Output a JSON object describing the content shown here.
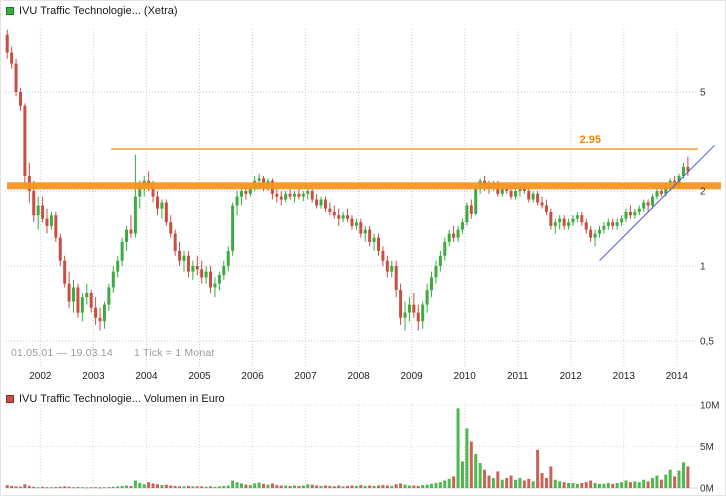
{
  "legend": {
    "price_label": "IVU Traffic Technologie... (Xetra)",
    "volume_label": "IVU Traffic Technologie... Volumen in Euro"
  },
  "info": {
    "date_range": "01.05.01 — 19.03.14",
    "tick_info": "1 Tick = 1 Monat"
  },
  "colors": {
    "up": "#3cab40",
    "down": "#c74e42",
    "up_vol": "#4db84d",
    "down_vol": "#cc6157",
    "grid": "#c9c9c9",
    "grid_light": "#d9d9d9",
    "orange": "#f79420",
    "orange_text": "#ef8200",
    "trend": "#4d61c4",
    "axis_text": "#333333"
  },
  "axes": {
    "price_ticks": [
      {
        "label": "5",
        "value": 5
      },
      {
        "label": "2",
        "value": 2
      },
      {
        "label": "1",
        "value": 1
      },
      {
        "label": "0,5",
        "value": 0.5
      }
    ],
    "volume_ticks": [
      {
        "label": "10M",
        "value": 10
      },
      {
        "label": "5M",
        "value": 5
      },
      {
        "label": "0M",
        "value": 0
      }
    ],
    "years": [
      {
        "label": "2002",
        "month_index": 8
      },
      {
        "label": "2003",
        "month_index": 20
      },
      {
        "label": "2004",
        "month_index": 32
      },
      {
        "label": "2005",
        "month_index": 44
      },
      {
        "label": "2006",
        "month_index": 56
      },
      {
        "label": "2007",
        "month_index": 68
      },
      {
        "label": "2008",
        "month_index": 80
      },
      {
        "label": "2009",
        "month_index": 92
      },
      {
        "label": "2010",
        "month_index": 104
      },
      {
        "label": "2011",
        "month_index": 116
      },
      {
        "label": "2012",
        "month_index": 128
      },
      {
        "label": "2013",
        "month_index": 140
      },
      {
        "label": "2014",
        "month_index": 152
      }
    ]
  },
  "annotations": {
    "resistance": {
      "price": 2.95,
      "label": "2.95",
      "start_month": 24
    },
    "support_band": {
      "price": 2.1,
      "thickness": 7
    },
    "trendline": {
      "from_month": 134,
      "from_price": 1.05,
      "to_month": 160,
      "to_price": 3.05
    }
  },
  "chart_data": [
    {
      "type": "candlestick",
      "title": "IVU Traffic Technologie... (Xetra)",
      "timeframe": "1 month per tick",
      "start": "2001-05",
      "end": "2014-03",
      "y_scale": "log",
      "ylim": [
        0.4,
        9
      ],
      "ohlc": [
        [
          8.5,
          8.9,
          6.8,
          7.2
        ],
        [
          7.2,
          7.6,
          6.2,
          6.5
        ],
        [
          6.5,
          6.8,
          4.8,
          5.0
        ],
        [
          5.0,
          5.2,
          4.2,
          4.4
        ],
        [
          4.4,
          4.5,
          2.1,
          2.3
        ],
        [
          2.3,
          2.6,
          1.8,
          2.0
        ],
        [
          2.0,
          2.2,
          1.5,
          1.6
        ],
        [
          1.6,
          1.9,
          1.4,
          1.75
        ],
        [
          1.75,
          1.9,
          1.5,
          1.55
        ],
        [
          1.55,
          1.7,
          1.35,
          1.45
        ],
        [
          1.45,
          1.65,
          1.4,
          1.6
        ],
        [
          1.6,
          1.65,
          1.25,
          1.3
        ],
        [
          1.3,
          1.35,
          1.0,
          1.05
        ],
        [
          1.05,
          1.1,
          0.82,
          0.85
        ],
        [
          0.85,
          0.95,
          0.68,
          0.72
        ],
        [
          0.72,
          0.88,
          0.65,
          0.82
        ],
        [
          0.82,
          0.85,
          0.62,
          0.65
        ],
        [
          0.65,
          0.78,
          0.6,
          0.75
        ],
        [
          0.75,
          0.85,
          0.7,
          0.78
        ],
        [
          0.78,
          0.8,
          0.65,
          0.68
        ],
        [
          0.68,
          0.75,
          0.58,
          0.62
        ],
        [
          0.62,
          0.68,
          0.55,
          0.6
        ],
        [
          0.6,
          0.72,
          0.56,
          0.7
        ],
        [
          0.7,
          0.85,
          0.66,
          0.82
        ],
        [
          0.82,
          1.0,
          0.78,
          0.95
        ],
        [
          0.95,
          1.1,
          0.9,
          1.05
        ],
        [
          1.05,
          1.3,
          1.0,
          1.25
        ],
        [
          1.25,
          1.45,
          1.15,
          1.4
        ],
        [
          1.4,
          1.6,
          1.3,
          1.35
        ],
        [
          1.35,
          2.8,
          1.3,
          1.9
        ],
        [
          1.9,
          2.2,
          1.7,
          2.1
        ],
        [
          2.1,
          2.3,
          1.9,
          2.2
        ],
        [
          2.2,
          2.4,
          2.0,
          2.1
        ],
        [
          2.1,
          2.2,
          1.8,
          1.9
        ],
        [
          1.9,
          2.0,
          1.6,
          1.7
        ],
        [
          1.7,
          1.85,
          1.55,
          1.8
        ],
        [
          1.8,
          1.85,
          1.45,
          1.5
        ],
        [
          1.5,
          1.6,
          1.3,
          1.35
        ],
        [
          1.35,
          1.4,
          1.1,
          1.15
        ],
        [
          1.15,
          1.25,
          1.0,
          1.05
        ],
        [
          1.05,
          1.15,
          0.95,
          1.1
        ],
        [
          1.1,
          1.15,
          0.9,
          0.95
        ],
        [
          0.95,
          1.05,
          0.88,
          1.0
        ],
        [
          1.0,
          1.1,
          0.92,
          0.97
        ],
        [
          0.97,
          1.05,
          0.85,
          0.9
        ],
        [
          0.9,
          1.0,
          0.85,
          0.95
        ],
        [
          0.95,
          1.0,
          0.78,
          0.82
        ],
        [
          0.82,
          0.9,
          0.75,
          0.85
        ],
        [
          0.85,
          0.95,
          0.8,
          0.92
        ],
        [
          0.92,
          1.05,
          0.88,
          1.0
        ],
        [
          1.0,
          1.2,
          0.95,
          1.15
        ],
        [
          1.15,
          1.8,
          1.1,
          1.75
        ],
        [
          1.75,
          2.0,
          1.6,
          1.9
        ],
        [
          1.9,
          2.1,
          1.75,
          2.0
        ],
        [
          2.0,
          2.15,
          1.85,
          1.95
        ],
        [
          1.95,
          2.1,
          1.9,
          2.05
        ],
        [
          2.05,
          2.3,
          2.0,
          2.2
        ],
        [
          2.2,
          2.35,
          2.1,
          2.25
        ],
        [
          2.25,
          2.3,
          2.0,
          2.1
        ],
        [
          2.1,
          2.25,
          2.0,
          2.2
        ],
        [
          2.2,
          2.25,
          1.85,
          1.95
        ],
        [
          1.95,
          2.05,
          1.8,
          1.9
        ],
        [
          1.9,
          2.0,
          1.75,
          1.85
        ],
        [
          1.85,
          2.0,
          1.8,
          1.95
        ],
        [
          1.95,
          2.05,
          1.85,
          1.9
        ],
        [
          1.9,
          2.0,
          1.8,
          1.95
        ],
        [
          1.95,
          2.05,
          1.85,
          1.9
        ],
        [
          1.9,
          2.0,
          1.82,
          1.95
        ],
        [
          1.95,
          2.05,
          1.85,
          2.0
        ],
        [
          2.0,
          2.05,
          1.8,
          1.85
        ],
        [
          1.85,
          1.95,
          1.7,
          1.75
        ],
        [
          1.75,
          1.9,
          1.7,
          1.85
        ],
        [
          1.85,
          1.9,
          1.65,
          1.7
        ],
        [
          1.7,
          1.8,
          1.6,
          1.65
        ],
        [
          1.65,
          1.75,
          1.55,
          1.6
        ],
        [
          1.6,
          1.7,
          1.45,
          1.55
        ],
        [
          1.55,
          1.65,
          1.5,
          1.6
        ],
        [
          1.6,
          1.7,
          1.5,
          1.55
        ],
        [
          1.55,
          1.6,
          1.4,
          1.45
        ],
        [
          1.45,
          1.55,
          1.4,
          1.5
        ],
        [
          1.5,
          1.55,
          1.3,
          1.35
        ],
        [
          1.35,
          1.45,
          1.25,
          1.4
        ],
        [
          1.4,
          1.45,
          1.2,
          1.25
        ],
        [
          1.25,
          1.35,
          1.15,
          1.3
        ],
        [
          1.3,
          1.35,
          1.1,
          1.15
        ],
        [
          1.15,
          1.2,
          1.0,
          1.05
        ],
        [
          1.05,
          1.1,
          0.9,
          0.95
        ],
        [
          0.95,
          1.05,
          0.9,
          1.0
        ],
        [
          1.0,
          1.05,
          0.75,
          0.8
        ],
        [
          0.8,
          0.85,
          0.58,
          0.62
        ],
        [
          0.62,
          0.72,
          0.55,
          0.65
        ],
        [
          0.65,
          0.75,
          0.6,
          0.7
        ],
        [
          0.7,
          0.78,
          0.62,
          0.65
        ],
        [
          0.65,
          0.7,
          0.55,
          0.6
        ],
        [
          0.6,
          0.72,
          0.56,
          0.7
        ],
        [
          0.7,
          0.85,
          0.65,
          0.8
        ],
        [
          0.8,
          0.95,
          0.75,
          0.9
        ],
        [
          0.9,
          1.05,
          0.85,
          1.0
        ],
        [
          1.0,
          1.15,
          0.95,
          1.1
        ],
        [
          1.1,
          1.3,
          1.05,
          1.25
        ],
        [
          1.25,
          1.4,
          1.2,
          1.35
        ],
        [
          1.35,
          1.45,
          1.25,
          1.3
        ],
        [
          1.3,
          1.45,
          1.25,
          1.4
        ],
        [
          1.4,
          1.55,
          1.35,
          1.5
        ],
        [
          1.5,
          1.8,
          1.45,
          1.75
        ],
        [
          1.75,
          1.85,
          1.55,
          1.62
        ],
        [
          1.62,
          2.1,
          1.6,
          2.05
        ],
        [
          2.05,
          2.25,
          1.95,
          2.2
        ],
        [
          2.2,
          2.3,
          2.0,
          2.1
        ],
        [
          2.1,
          2.2,
          1.95,
          2.05
        ],
        [
          2.05,
          2.2,
          2.0,
          2.15
        ],
        [
          2.15,
          2.2,
          1.9,
          1.95
        ],
        [
          1.95,
          2.1,
          1.9,
          2.05
        ],
        [
          2.05,
          2.15,
          1.95,
          2.0
        ],
        [
          2.0,
          2.1,
          1.85,
          1.9
        ],
        [
          1.9,
          2.05,
          1.85,
          2.0
        ],
        [
          2.0,
          2.1,
          1.9,
          2.05
        ],
        [
          2.05,
          2.15,
          1.95,
          2.0
        ],
        [
          2.0,
          2.05,
          1.8,
          1.85
        ],
        [
          1.85,
          2.0,
          1.8,
          1.95
        ],
        [
          1.95,
          2.0,
          1.75,
          1.8
        ],
        [
          1.8,
          1.9,
          1.7,
          1.75
        ],
        [
          1.75,
          1.85,
          1.6,
          1.65
        ],
        [
          1.65,
          1.7,
          1.4,
          1.45
        ],
        [
          1.45,
          1.55,
          1.35,
          1.5
        ],
        [
          1.5,
          1.6,
          1.4,
          1.55
        ],
        [
          1.55,
          1.6,
          1.4,
          1.45
        ],
        [
          1.45,
          1.55,
          1.4,
          1.5
        ],
        [
          1.5,
          1.6,
          1.45,
          1.55
        ],
        [
          1.55,
          1.65,
          1.5,
          1.6
        ],
        [
          1.6,
          1.65,
          1.45,
          1.5
        ],
        [
          1.5,
          1.55,
          1.35,
          1.4
        ],
        [
          1.4,
          1.45,
          1.25,
          1.3
        ],
        [
          1.3,
          1.4,
          1.2,
          1.35
        ],
        [
          1.35,
          1.45,
          1.3,
          1.4
        ],
        [
          1.4,
          1.5,
          1.35,
          1.45
        ],
        [
          1.45,
          1.55,
          1.4,
          1.5
        ],
        [
          1.5,
          1.55,
          1.4,
          1.45
        ],
        [
          1.45,
          1.55,
          1.4,
          1.5
        ],
        [
          1.5,
          1.6,
          1.45,
          1.55
        ],
        [
          1.55,
          1.7,
          1.5,
          1.65
        ],
        [
          1.65,
          1.75,
          1.55,
          1.6
        ],
        [
          1.6,
          1.7,
          1.55,
          1.65
        ],
        [
          1.65,
          1.75,
          1.6,
          1.7
        ],
        [
          1.7,
          1.85,
          1.65,
          1.8
        ],
        [
          1.8,
          1.85,
          1.65,
          1.75
        ],
        [
          1.75,
          1.95,
          1.7,
          1.9
        ],
        [
          1.9,
          2.05,
          1.85,
          2.0
        ],
        [
          2.0,
          2.1,
          1.9,
          1.95
        ],
        [
          1.95,
          2.15,
          1.9,
          2.1
        ],
        [
          2.1,
          2.25,
          2.0,
          2.2
        ],
        [
          2.2,
          2.3,
          2.05,
          2.1
        ],
        [
          2.1,
          2.35,
          2.05,
          2.3
        ],
        [
          2.3,
          2.6,
          2.25,
          2.5
        ],
        [
          2.5,
          2.75,
          2.3,
          2.4
        ]
      ]
    },
    {
      "type": "bar",
      "title": "IVU Traffic Technologie... Volumen in Euro",
      "ylabel": "Volumen in Euro",
      "ylim_million": [
        0,
        10
      ],
      "values_million": [
        0.35,
        0.25,
        0.2,
        0.15,
        0.45,
        0.25,
        0.15,
        0.1,
        0.15,
        0.1,
        0.1,
        0.12,
        0.15,
        0.2,
        0.15,
        0.1,
        0.12,
        0.1,
        0.08,
        0.1,
        0.1,
        0.08,
        0.1,
        0.12,
        0.15,
        0.2,
        0.25,
        0.3,
        0.25,
        0.9,
        0.6,
        0.45,
        0.7,
        0.55,
        0.45,
        0.35,
        0.4,
        0.3,
        0.25,
        0.2,
        0.2,
        0.25,
        0.2,
        0.2,
        0.2,
        0.15,
        0.2,
        0.15,
        0.2,
        0.25,
        0.3,
        0.9,
        0.7,
        0.55,
        0.4,
        0.35,
        0.55,
        0.65,
        0.5,
        0.4,
        0.55,
        0.35,
        0.3,
        0.3,
        0.25,
        0.3,
        0.25,
        0.3,
        0.45,
        0.4,
        0.3,
        0.25,
        0.3,
        0.25,
        0.2,
        0.3,
        0.2,
        0.25,
        0.3,
        0.25,
        0.35,
        0.25,
        0.3,
        0.25,
        0.3,
        0.35,
        0.3,
        0.25,
        0.45,
        0.55,
        0.4,
        0.3,
        0.3,
        0.25,
        0.35,
        0.4,
        0.5,
        0.6,
        0.7,
        0.9,
        1.1,
        1.4,
        9.6,
        3.2,
        7.2,
        5.6,
        4.1,
        3.0,
        2.2,
        1.5,
        1.2,
        2.0,
        1.0,
        1.2,
        1.5,
        1.0,
        1.2,
        0.9,
        1.1,
        0.8,
        4.6,
        1.8,
        1.2,
        2.6,
        1.0,
        0.8,
        0.7,
        0.6,
        0.6,
        0.5,
        0.6,
        0.7,
        0.9,
        0.6,
        0.5,
        0.5,
        0.6,
        0.5,
        0.6,
        0.7,
        0.9,
        0.7,
        0.8,
        0.7,
        1.0,
        0.8,
        1.2,
        1.5,
        1.0,
        1.6,
        2.2,
        1.4,
        2.1,
        3.1,
        2.6
      ]
    }
  ]
}
